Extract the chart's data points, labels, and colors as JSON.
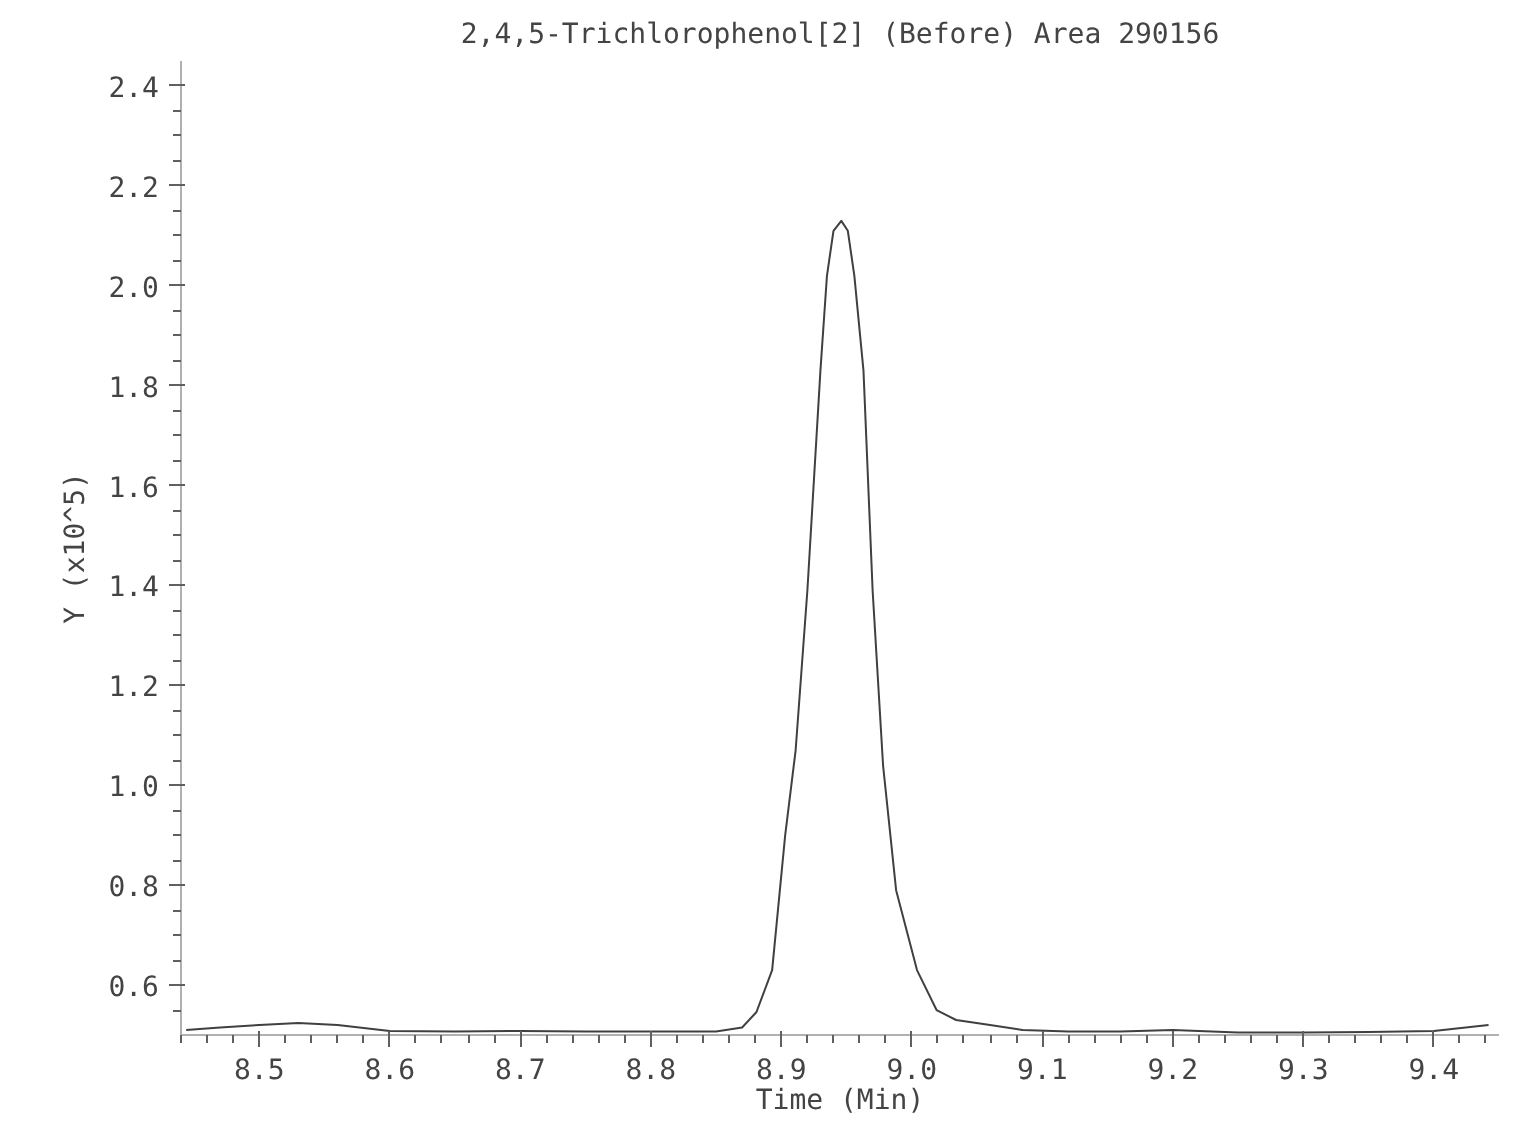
{
  "chart_data": {
    "type": "line",
    "title": "2,4,5-Trichlorophenol[2] (Before) Area 290156",
    "xlabel": "Time (Min)",
    "ylabel": "Y (x10^5)",
    "x": [
      8.444,
      8.47,
      8.5,
      8.53,
      8.56,
      8.6,
      8.65,
      8.7,
      8.75,
      8.8,
      8.85,
      8.87,
      8.881,
      8.893,
      8.903,
      8.911,
      8.92,
      8.93,
      8.935,
      8.94,
      8.946,
      8.951,
      8.956,
      8.963,
      8.97,
      8.978,
      8.988,
      9.004,
      9.019,
      9.034,
      9.06,
      9.085,
      9.12,
      9.16,
      9.2,
      9.25,
      9.3,
      9.35,
      9.4,
      9.442
    ],
    "series": [
      {
        "color": "#404040",
        "values": [
          0.51,
          0.515,
          0.52,
          0.524,
          0.52,
          0.508,
          0.507,
          0.508,
          0.507,
          0.507,
          0.507,
          0.515,
          0.546,
          0.63,
          0.9,
          1.07,
          1.39,
          1.83,
          2.02,
          2.11,
          2.13,
          2.11,
          2.02,
          1.83,
          1.39,
          1.04,
          0.79,
          0.63,
          0.55,
          0.53,
          0.52,
          0.51,
          0.507,
          0.507,
          0.51,
          0.505,
          0.505,
          0.506,
          0.508,
          0.52
        ]
      }
    ],
    "xlim": [
      8.44,
      9.45
    ],
    "ylim": [
      0.5,
      2.45
    ],
    "xticks": [
      8.5,
      8.6,
      8.7,
      8.8,
      8.9,
      {
        "value": 9.0,
        "label": "9.0"
      },
      9.1,
      9.2,
      9.3,
      9.4
    ],
    "yticks": [
      0.6,
      0.8,
      {
        "value": 1.0,
        "label": "1.0"
      },
      1.2,
      1.4,
      1.6,
      1.8,
      {
        "value": 2.0,
        "label": "2.0"
      },
      2.2,
      2.4
    ],
    "grid": false,
    "marker": "none",
    "line_style": "solid"
  }
}
